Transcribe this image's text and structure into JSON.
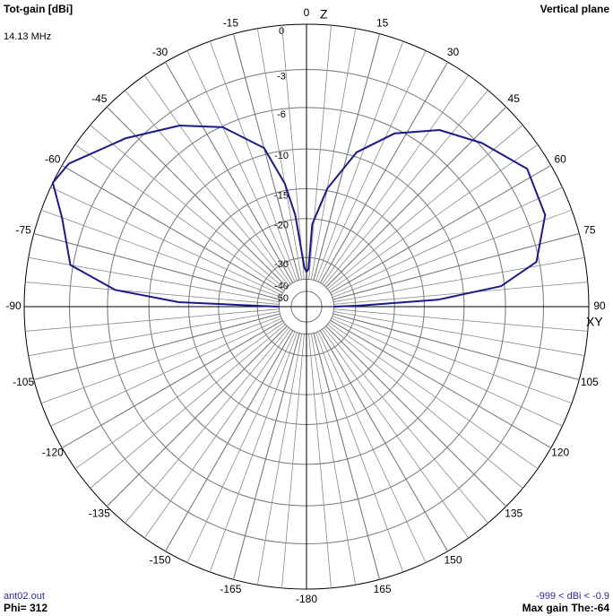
{
  "chart_data": {
    "type": "polar",
    "title": "Tot-gain [dBi]",
    "subtitle": "Vertical plane",
    "frequency": "14.13 MHz",
    "zenith_label": "Z",
    "horizon_label": "XY",
    "file": "ant02.out",
    "phi": "Phi= 312",
    "range_note": "-999 < dBi < -0.9",
    "max_note": "Max gain The:-64",
    "color": "#1a1a8c",
    "theta": [
      -90,
      -89,
      -88,
      -85,
      -80,
      -70,
      -64,
      -59,
      -47,
      -35,
      -25,
      -15,
      -10,
      -7,
      -3,
      0,
      3,
      4,
      10,
      18,
      27,
      37,
      47,
      58,
      69,
      79,
      84,
      87,
      89,
      90
    ],
    "values": [
      -40,
      -30.6,
      -13.6,
      -6.6,
      -2.8,
      -1.4,
      0,
      -0.3,
      -2.3,
      -4.2,
      -6.1,
      -9.3,
      -14,
      -19.2,
      -34,
      -36,
      -34.6,
      -21.1,
      -14.7,
      -9.5,
      -6.4,
      -4.2,
      -2.8,
      -1.4,
      -1.7,
      -3.2,
      -6.3,
      -13.1,
      -29.3,
      -40
    ],
    "rticks": [
      0,
      -3,
      -6,
      -10,
      -15,
      -20,
      -30,
      -40,
      -50
    ],
    "thetaticks": [
      0,
      15,
      30,
      45,
      60,
      75,
      90,
      105,
      120,
      135,
      150,
      165,
      -180,
      -165,
      -150,
      -135,
      -120,
      -105,
      -90,
      -75,
      -60,
      -45,
      -30,
      -15
    ]
  }
}
